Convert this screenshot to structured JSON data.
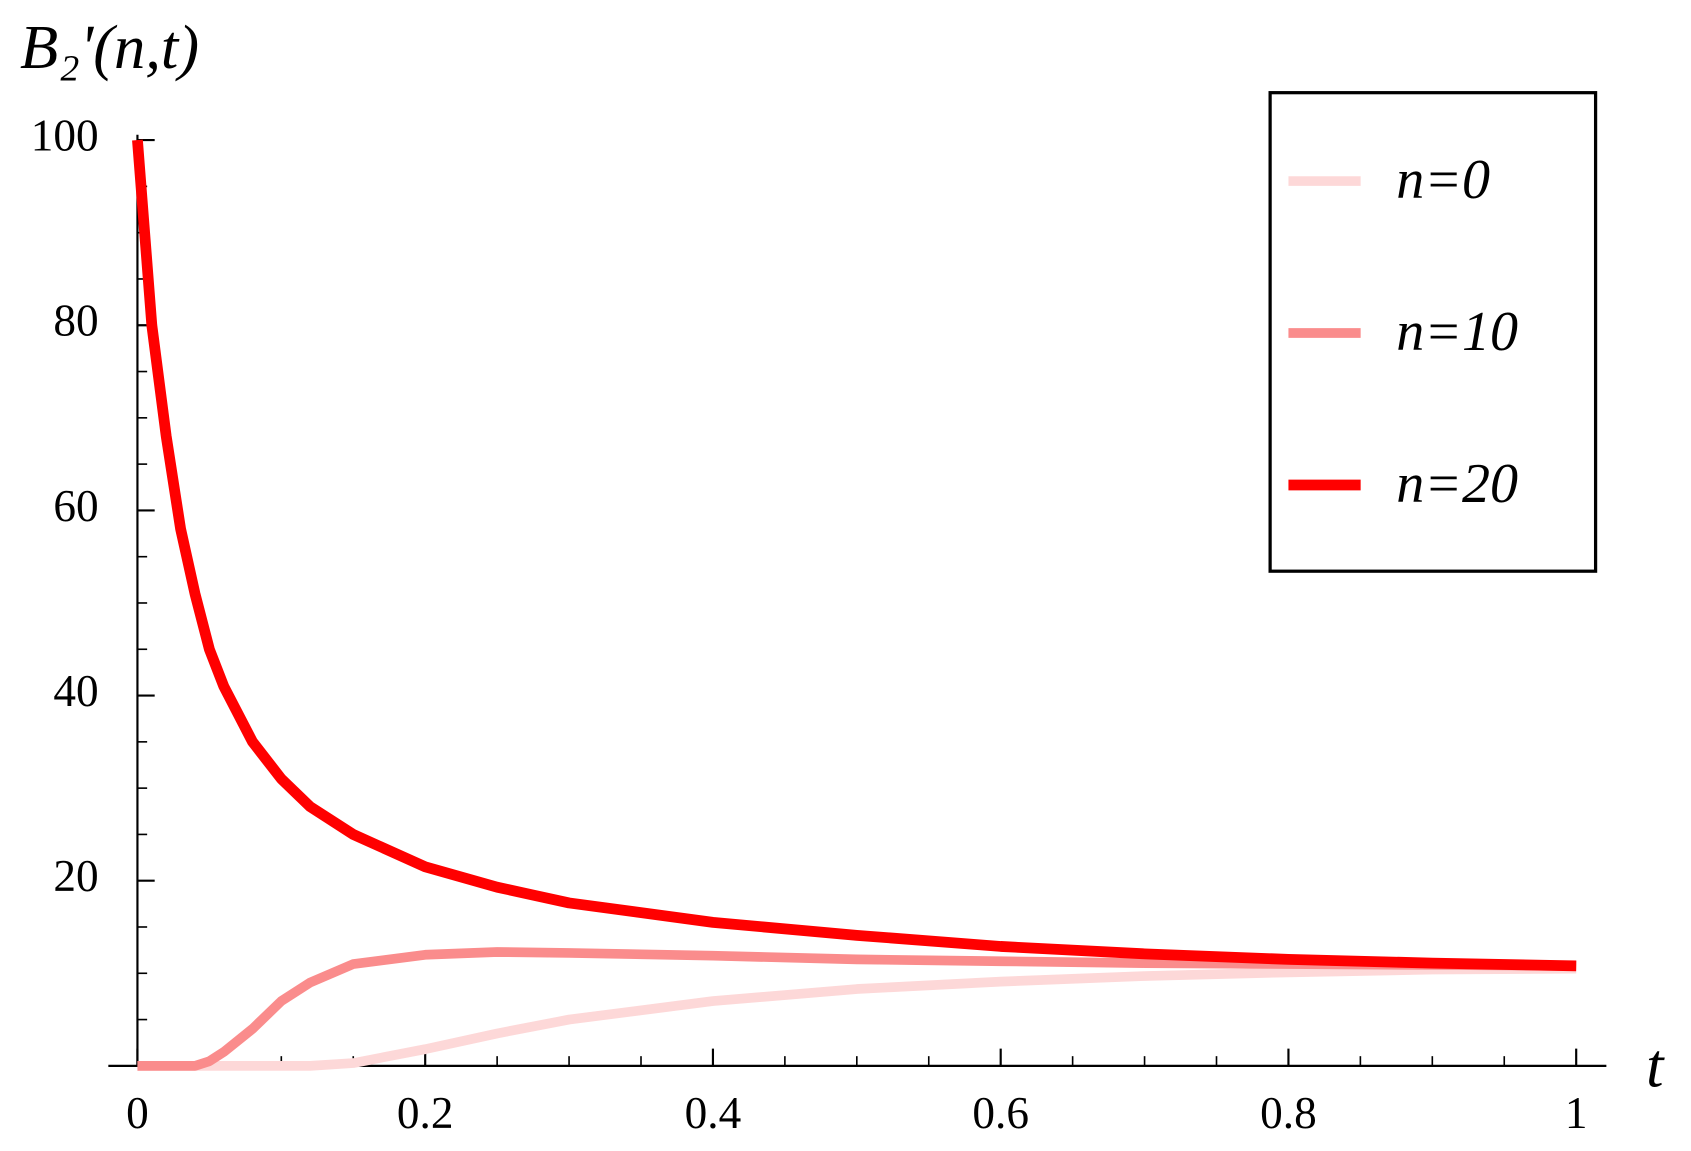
{
  "chart_data": {
    "type": "line",
    "ylabel": "B₂'(n,t)",
    "xlabel": "t",
    "x": [
      0,
      0.005,
      0.01,
      0.02,
      0.03,
      0.04,
      0.05,
      0.06,
      0.08,
      0.1,
      0.12,
      0.15,
      0.2,
      0.25,
      0.3,
      0.4,
      0.5,
      0.6,
      0.7,
      0.8,
      0.9,
      1
    ],
    "series": [
      {
        "name": "n=0",
        "color": "#fdd8d8",
        "values": [
          0,
          0,
          0,
          0,
          0,
          0,
          0,
          0,
          0,
          0,
          0,
          0.3,
          1.8,
          3.5,
          5,
          7,
          8.3,
          9.1,
          9.7,
          10.1,
          10.4,
          10.5
        ]
      },
      {
        "name": "n=10",
        "color": "#fa8c8c",
        "values": [
          0,
          0,
          0,
          0,
          0,
          0,
          0.5,
          1.5,
          4,
          7,
          9,
          11,
          12,
          12.3,
          12.2,
          11.9,
          11.5,
          11.3,
          11.1,
          11,
          10.9,
          10.8
        ]
      },
      {
        "name": "n=20",
        "color": "#ff0000",
        "values": [
          100,
          90,
          80,
          68,
          58,
          51,
          45,
          41,
          35,
          31,
          28,
          25,
          21.5,
          19.3,
          17.6,
          15.5,
          14.1,
          12.9,
          12.1,
          11.5,
          11.1,
          10.8
        ]
      }
    ],
    "xlim": [
      0,
      1
    ],
    "ylim": [
      0,
      100
    ],
    "xticks": [
      0,
      0.2,
      0.4,
      0.6,
      0.8,
      1
    ],
    "yticks": [
      20,
      40,
      60,
      80,
      100
    ],
    "xminorticks": [
      0.05,
      0.1,
      0.15,
      0.25,
      0.3,
      0.35,
      0.45,
      0.5,
      0.55,
      0.65,
      0.7,
      0.75,
      0.85,
      0.9,
      0.95
    ],
    "yminorticks": [
      5,
      10,
      15,
      25,
      30,
      35,
      45,
      50,
      55,
      65,
      70,
      75,
      85,
      90,
      95
    ],
    "legend": "upper right"
  }
}
